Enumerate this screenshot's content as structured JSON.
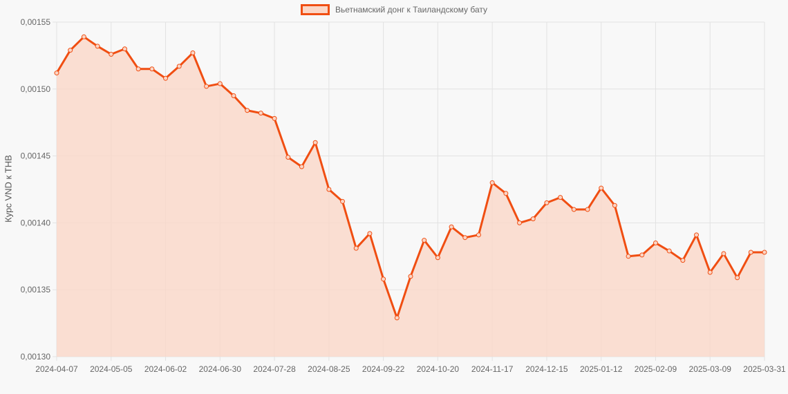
{
  "chart_data": {
    "type": "line",
    "legend": {
      "label": "Вьетнамский донг к Таиландскому бату",
      "placement": "top-center"
    },
    "ylabel": "Курс VND к THB",
    "ylim": [
      0.0013,
      0.00155
    ],
    "yticks": [
      "0,00130",
      "0,00135",
      "0,00140",
      "0,00145",
      "0,00150",
      "0,00155"
    ],
    "x_tick_labels": [
      "2024-04-07",
      "2024-05-05",
      "2024-06-02",
      "2024-06-30",
      "2024-07-28",
      "2024-08-25",
      "2024-09-22",
      "2024-10-20",
      "2024-11-17",
      "2024-12-15",
      "2025-01-12",
      "2025-02-09",
      "2025-03-09",
      "2025-03-31"
    ],
    "x_tick_positions": [
      0,
      4,
      8,
      12,
      16,
      20,
      24,
      28,
      32,
      36,
      40,
      44,
      48,
      52
    ],
    "grid": true,
    "colors": {
      "line": "#f04e12",
      "fill": "#fbd6c6",
      "grid": "#e2e2e2"
    },
    "series": [
      {
        "name": "Вьетнамский донг к Таиландскому бату",
        "values": [
          0.001512,
          0.001529,
          0.001539,
          0.001532,
          0.001526,
          0.00153,
          0.001515,
          0.001515,
          0.001508,
          0.001517,
          0.001527,
          0.001502,
          0.001504,
          0.001495,
          0.001484,
          0.001482,
          0.001478,
          0.001449,
          0.001442,
          0.00146,
          0.001425,
          0.001416,
          0.001381,
          0.001392,
          0.001358,
          0.001329,
          0.00136,
          0.001387,
          0.001374,
          0.001397,
          0.001389,
          0.001391,
          0.00143,
          0.001422,
          0.0014,
          0.001403,
          0.001415,
          0.001419,
          0.00141,
          0.00141,
          0.001426,
          0.001413,
          0.001375,
          0.001376,
          0.001385,
          0.001379,
          0.001372,
          0.001391,
          0.001363,
          0.001377,
          0.001359,
          0.001378,
          0.001378
        ]
      }
    ]
  }
}
